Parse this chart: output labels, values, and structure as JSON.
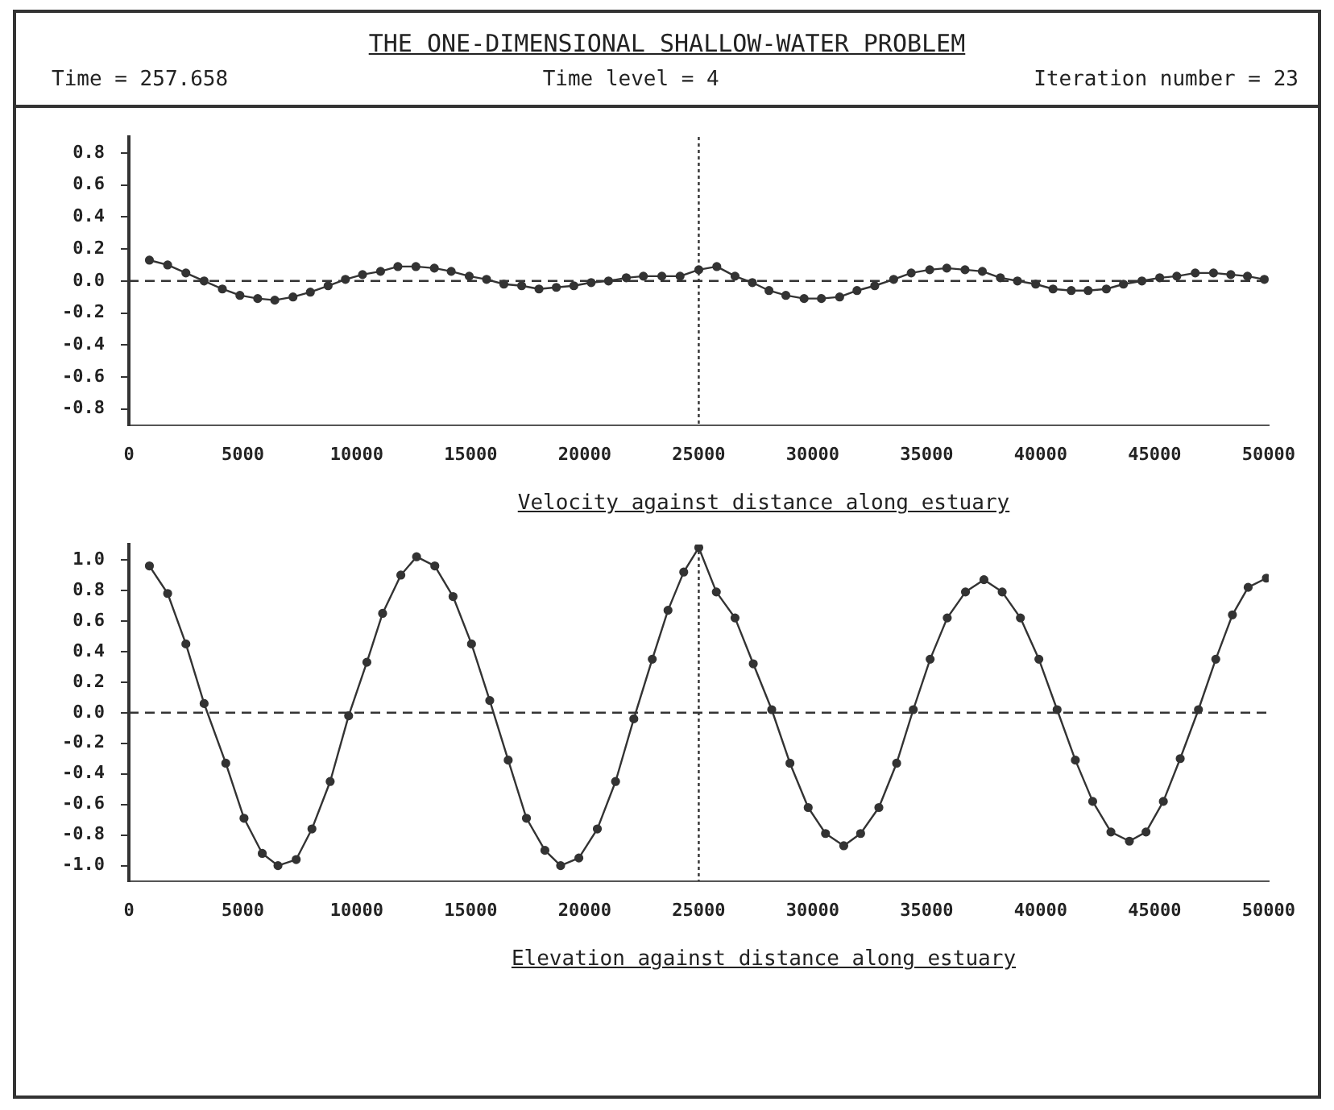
{
  "chart_data": [
    {
      "type": "line",
      "title": "THE ONE-DIMENSIONAL SHALLOW-WATER PROBLEM",
      "annotations": [
        "Time =  257.658",
        "Time level =  4",
        "Iteration number =  23"
      ],
      "xlabel": "Velocity against distance along estuary",
      "xlim": [
        0,
        50000
      ],
      "xticks": [
        0,
        5000,
        10000,
        15000,
        20000,
        25000,
        30000,
        35000,
        40000,
        45000,
        50000
      ],
      "ylim": [
        -0.9,
        0.9
      ],
      "yticks": [
        {
          "value": 0.8,
          "label": "0.8"
        },
        {
          "value": 0.6,
          "label": "0.6"
        },
        {
          "value": 0.4,
          "label": "0.4"
        },
        {
          "value": 0.2,
          "label": "0.2"
        },
        {
          "value": 0,
          "label": "0.0"
        },
        {
          "value": -0.2,
          "label": "-0.2"
        },
        {
          "value": -0.4,
          "label": "-0.4"
        },
        {
          "value": -0.6,
          "label": "-0.6"
        },
        {
          "value": -0.8,
          "label": "-0.8"
        }
      ],
      "grid": false,
      "legend": false,
      "marker": "circle",
      "line_style": "solid",
      "ref_lines": [
        {
          "axis": "y",
          "value": 0,
          "line_style": "dashed"
        },
        {
          "axis": "x",
          "value": 25000,
          "line_style": "dotted"
        }
      ],
      "series": [
        {
          "color": "#333333",
          "x": [
            900,
            1700,
            2500,
            3300,
            4100,
            4870,
            5650,
            6400,
            7200,
            7960,
            8740,
            9500,
            10250,
            11040,
            11800,
            12590,
            13400,
            14140,
            14930,
            15690,
            16450,
            17230,
            17990,
            18750,
            19520,
            20280,
            21040,
            21820,
            22570,
            23380,
            24180,
            25000,
            25790,
            26590,
            27350,
            28080,
            28820,
            29620,
            30380,
            31180,
            31940,
            32720,
            33550,
            34320,
            35130,
            35880,
            36680,
            37440,
            38230,
            38980,
            39780,
            40540,
            41340,
            42080,
            42880,
            43630,
            44440,
            45220,
            45970,
            46780,
            47580,
            48340,
            49070,
            49810
          ],
          "values": [
            0.13,
            0.1,
            0.05,
            0.0,
            -0.05,
            -0.09,
            -0.11,
            -0.12,
            -0.1,
            -0.07,
            -0.03,
            0.01,
            0.04,
            0.06,
            0.09,
            0.09,
            0.08,
            0.06,
            0.03,
            0.01,
            -0.02,
            -0.03,
            -0.05,
            -0.04,
            -0.03,
            -0.01,
            0.0,
            0.02,
            0.03,
            0.03,
            0.03,
            0.07,
            0.09,
            0.03,
            -0.01,
            -0.06,
            -0.09,
            -0.11,
            -0.11,
            -0.1,
            -0.06,
            -0.03,
            0.01,
            0.05,
            0.07,
            0.08,
            0.07,
            0.06,
            0.02,
            0.0,
            -0.02,
            -0.05,
            -0.06,
            -0.06,
            -0.05,
            -0.02,
            0.0,
            0.02,
            0.03,
            0.05,
            0.05,
            0.04,
            0.03,
            0.01
          ]
        }
      ]
    },
    {
      "type": "line",
      "xlabel": "Elevation against distance along estuary",
      "xlim": [
        0,
        50000
      ],
      "xticks": [
        0,
        5000,
        10000,
        15000,
        20000,
        25000,
        30000,
        35000,
        40000,
        45000,
        50000
      ],
      "ylim": [
        -1.1,
        1.1
      ],
      "yticks": [
        {
          "value": 1,
          "label": "1.0"
        },
        {
          "value": 0.8,
          "label": "0.8"
        },
        {
          "value": 0.6,
          "label": "0.6"
        },
        {
          "value": 0.4,
          "label": "0.4"
        },
        {
          "value": 0.2,
          "label": "0.2"
        },
        {
          "value": 0,
          "label": "0.0"
        },
        {
          "value": -0.2,
          "label": "-0.2"
        },
        {
          "value": -0.4,
          "label": "-0.4"
        },
        {
          "value": -0.6,
          "label": "-0.6"
        },
        {
          "value": -0.8,
          "label": "-0.8"
        },
        {
          "value": -1,
          "label": "-1.0"
        }
      ],
      "grid": false,
      "legend": false,
      "marker": "circle",
      "line_style": "solid",
      "ref_lines": [
        {
          "axis": "y",
          "value": 0,
          "line_style": "dashed"
        },
        {
          "axis": "x",
          "value": 25000,
          "line_style": "dotted"
        }
      ],
      "series": [
        {
          "color": "#333333",
          "x": [
            900,
            1700,
            2500,
            3300,
            4250,
            5050,
            5850,
            6540,
            7340,
            8030,
            8830,
            9640,
            10440,
            11130,
            11930,
            12620,
            13420,
            14220,
            15030,
            15830,
            16640,
            17440,
            18250,
            18940,
            19740,
            20550,
            21350,
            22150,
            22960,
            23650,
            24340,
            25000,
            25770,
            26590,
            27390,
            28200,
            29000,
            29800,
            30560,
            31360,
            32100,
            32900,
            33680,
            34410,
            35150,
            35900,
            36700,
            37510,
            38310,
            39110,
            39920,
            40720,
            41520,
            42280,
            43080,
            43890,
            44620,
            45380,
            46120,
            46920,
            47680,
            48410,
            49100,
            49900
          ],
          "values": [
            0.96,
            0.78,
            0.45,
            0.06,
            -0.33,
            -0.69,
            -0.92,
            -1.0,
            -0.96,
            -0.76,
            -0.45,
            -0.02,
            0.33,
            0.65,
            0.9,
            1.02,
            0.96,
            0.76,
            0.45,
            0.08,
            -0.31,
            -0.69,
            -0.9,
            -1.0,
            -0.95,
            -0.76,
            -0.45,
            -0.04,
            0.35,
            0.67,
            0.92,
            1.08,
            0.79,
            0.62,
            0.32,
            0.02,
            -0.33,
            -0.62,
            -0.79,
            -0.87,
            -0.79,
            -0.62,
            -0.33,
            0.02,
            0.35,
            0.62,
            0.79,
            0.87,
            0.79,
            0.62,
            0.35,
            0.02,
            -0.31,
            -0.58,
            -0.78,
            -0.84,
            -0.78,
            -0.58,
            -0.3,
            0.02,
            0.35,
            0.64,
            0.82,
            0.88
          ]
        }
      ]
    }
  ]
}
